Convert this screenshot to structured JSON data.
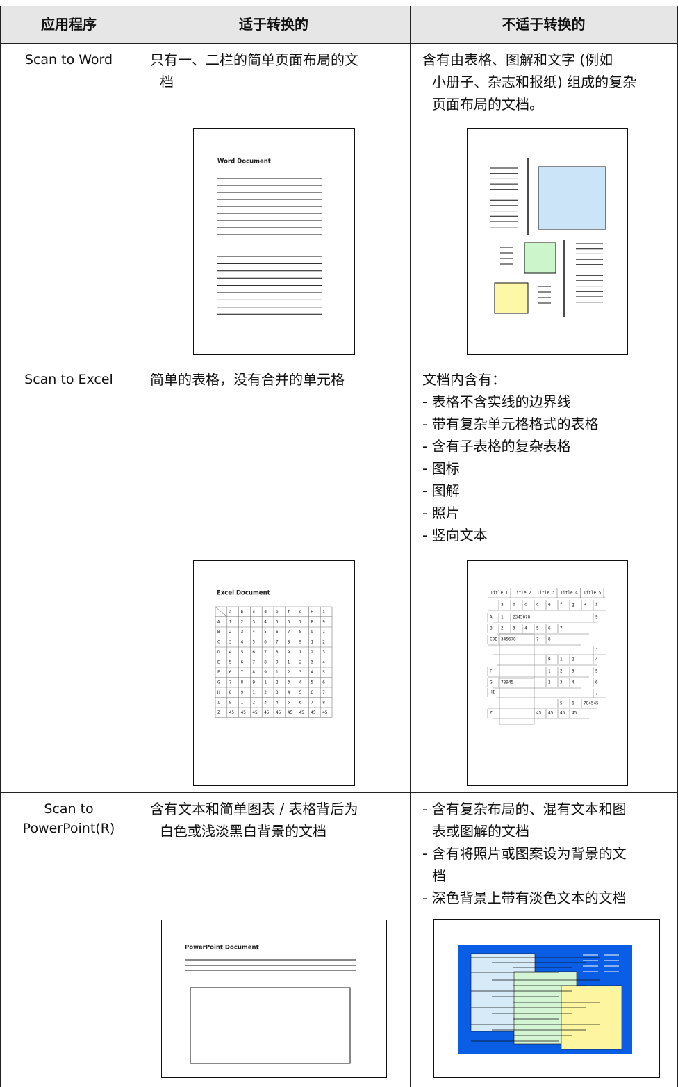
{
  "table": {
    "header": [
      "应用程序",
      "适于转换的",
      "不适于转换的"
    ],
    "rows": [
      {
        "application": [
          "Scan to Word"
        ],
        "suitable": [
          [
            "只有一、二栏的简单页面布局的文",
            "档"
          ]
        ],
        "unsuitable": [
          [
            "含有由表格、图解和文字 (例如",
            "小册子、杂志和报纸) 组成的复杂",
            "页面布局的文档。"
          ]
        ]
      },
      {
        "application": [
          "Scan to Excel"
        ],
        "suitable": [
          [
            "简单的表格，没有合并的单元格"
          ]
        ],
        "unsuitable": [
          [
            "文档内含有："
          ],
          [
            "- 表格不含实线的边界线"
          ],
          [
            "- 带有复杂单元格格式的表格"
          ],
          [
            "- 含有子表格的复杂表格"
          ],
          [
            "- 图标"
          ],
          [
            "- 图解"
          ],
          [
            "- 照片"
          ],
          [
            "- 竖向文本"
          ]
        ]
      },
      {
        "application": [
          "Scan to",
          "PowerPoint(R)"
        ],
        "suitable": [
          [
            "含有文本和简单图表 / 表格背后为",
            "白色或浅淡黑白背景的文档"
          ]
        ],
        "unsuitable": [
          [
            "- 含有复杂布局的、混有文本和图",
            "表或图解的文档"
          ],
          [
            "- 含有将照片或图案设为背景的文",
            "档"
          ],
          [
            "- 深色背景上带有淡色文本的文档"
          ]
        ]
      }
    ]
  },
  "illustrations": {
    "word_title": "Word Document",
    "excel_title": "Excel Document",
    "excel_columns": [
      "a",
      "b",
      "c",
      "d",
      "e",
      "f",
      "g",
      "H",
      "i"
    ],
    "excel_rows": [
      {
        "label": "A",
        "cells": [
          "1",
          "2",
          "3",
          "4",
          "5",
          "6",
          "7",
          "8",
          "9"
        ]
      },
      {
        "label": "B",
        "cells": [
          "2",
          "3",
          "4",
          "5",
          "6",
          "7",
          "8",
          "9",
          "1"
        ]
      },
      {
        "label": "C",
        "cells": [
          "3",
          "4",
          "5",
          "6",
          "7",
          "8",
          "9",
          "1",
          "2"
        ]
      },
      {
        "label": "D",
        "cells": [
          "4",
          "5",
          "6",
          "7",
          "8",
          "9",
          "1",
          "2",
          "3"
        ]
      },
      {
        "label": "E",
        "cells": [
          "5",
          "6",
          "7",
          "8",
          "9",
          "1",
          "2",
          "3",
          "4"
        ]
      },
      {
        "label": "F",
        "cells": [
          "6",
          "7",
          "8",
          "9",
          "1",
          "2",
          "3",
          "4",
          "5"
        ]
      },
      {
        "label": "G",
        "cells": [
          "7",
          "8",
          "9",
          "1",
          "2",
          "3",
          "4",
          "5",
          "6"
        ]
      },
      {
        "label": "H",
        "cells": [
          "8",
          "9",
          "1",
          "2",
          "3",
          "4",
          "5",
          "6",
          "7"
        ]
      },
      {
        "label": "I",
        "cells": [
          "9",
          "1",
          "2",
          "3",
          "4",
          "5",
          "6",
          "7",
          "8"
        ]
      },
      {
        "label": "Z",
        "cells": [
          "45",
          "45",
          "45",
          "45",
          "45",
          "45",
          "45",
          "45",
          "45"
        ]
      }
    ],
    "complex_titles": [
      "Title 1",
      "Title 2",
      "Title 3",
      "Title 4",
      "Title 5"
    ],
    "complex_cells": [
      "a",
      "b",
      "c",
      "d",
      "e",
      "f",
      "g",
      "H",
      "i",
      "A",
      "1",
      "2345678",
      "9",
      "B",
      "2",
      "3",
      "4",
      "5",
      "6",
      "7",
      "CDE",
      "345678",
      "7",
      "8",
      "3",
      "9",
      "1",
      "2",
      "4",
      "F",
      "1",
      "2",
      "3",
      "5",
      "G",
      "78945",
      "2",
      "3",
      "4",
      "6",
      "HI",
      "7",
      "5",
      "6",
      "784545",
      "Z",
      "45",
      "45",
      "45",
      "45"
    ],
    "ppt_title": "PowerPoint Document"
  }
}
